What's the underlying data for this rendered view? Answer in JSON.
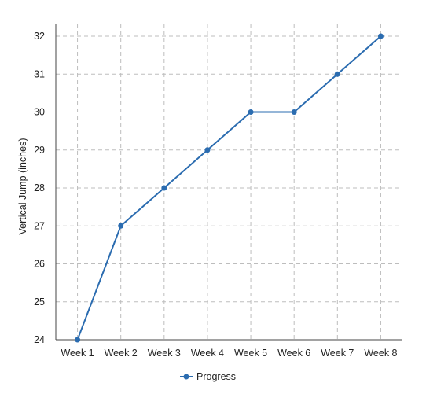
{
  "chart_data": {
    "type": "line",
    "categories": [
      "Week 1",
      "Week 2",
      "Week 3",
      "Week 4",
      "Week 5",
      "Week 6",
      "Week 7",
      "Week 8"
    ],
    "series": [
      {
        "name": "Progress",
        "values": [
          24,
          27,
          28,
          29,
          30,
          30,
          31,
          32
        ],
        "color": "#2b6cb0"
      }
    ],
    "title": "",
    "xlabel": "",
    "ylabel": "Vertical Jump (inches)",
    "ylim": [
      24,
      32
    ],
    "yticks": [
      24,
      25,
      26,
      27,
      28,
      29,
      30,
      31,
      32
    ],
    "grid": true,
    "grid_style": "dashed",
    "legend_position": "bottom-center"
  }
}
